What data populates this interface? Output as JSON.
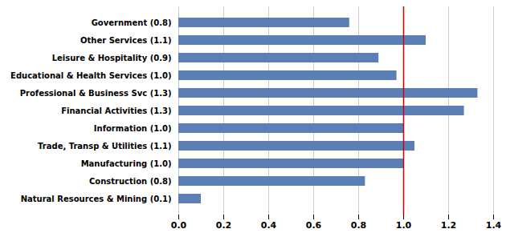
{
  "chart_data": {
    "type": "bar",
    "orientation": "horizontal",
    "categories": [
      "Natural Resources & Mining (0.1)",
      "Construction (0.8)",
      "Manufacturing (1.0)",
      "Trade, Transp & Utilities (1.1)",
      "Information (1.0)",
      "Financial Activities (1.3)",
      "Professional & Business Svc (1.3)",
      "Educational & Health Services (1.0)",
      "Leisure & Hospitality (0.9)",
      "Other Services (1.1)",
      "Government (0.8)"
    ],
    "values": [
      0.1,
      0.83,
      1.0,
      1.05,
      1.0,
      1.27,
      1.33,
      0.97,
      0.89,
      1.1,
      0.76
    ],
    "color": "#5B7FB5",
    "xlim": [
      0.0,
      1.4
    ],
    "xticks": [
      {
        "value": 0.0,
        "label": "0.0"
      },
      0.2,
      0.4,
      0.6,
      0.8,
      {
        "value": 1.0,
        "label": "1.0"
      },
      1.2,
      1.4
    ],
    "grid": true,
    "reference_line": {
      "value": 1.0,
      "color": "#CC0000"
    }
  }
}
